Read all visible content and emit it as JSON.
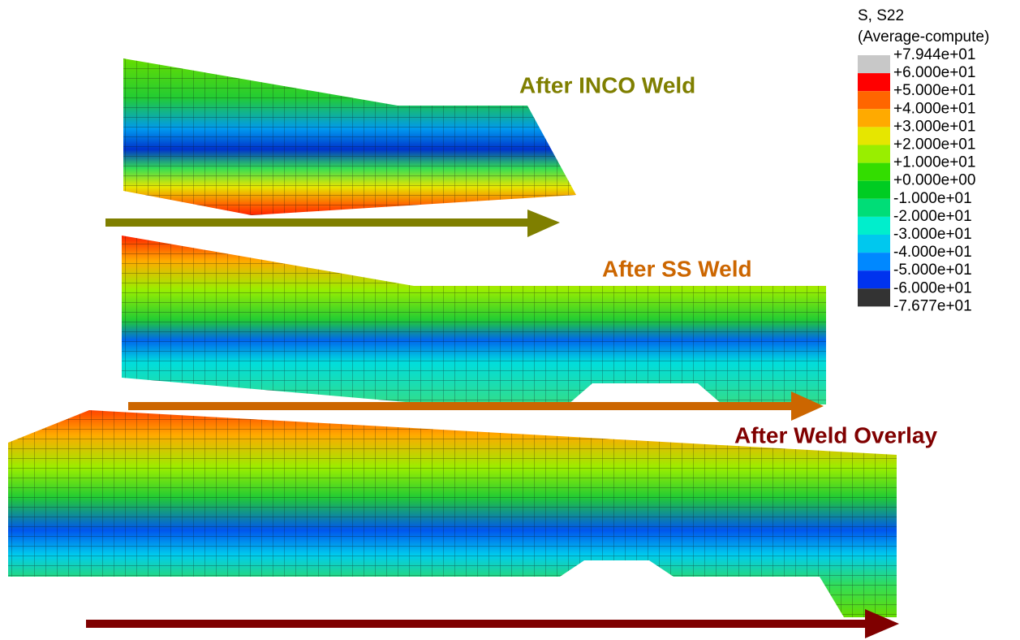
{
  "legend": {
    "title": [
      "S, S22",
      "(Average-compute)"
    ],
    "labels": [
      "+7.944e+01",
      "+6.000e+01",
      "+5.000e+01",
      "+4.000e+01",
      "+3.000e+01",
      "+2.000e+01",
      "+1.000e+01",
      "+0.000e+00",
      "-1.000e+01",
      "-2.000e+01",
      "-3.000e+01",
      "-4.000e+01",
      "-5.000e+01",
      "-6.000e+01",
      "-7.677e+01"
    ]
  },
  "captions": [
    "After INCO Weld",
    "After SS Weld",
    "After Weld Overlay"
  ]
}
